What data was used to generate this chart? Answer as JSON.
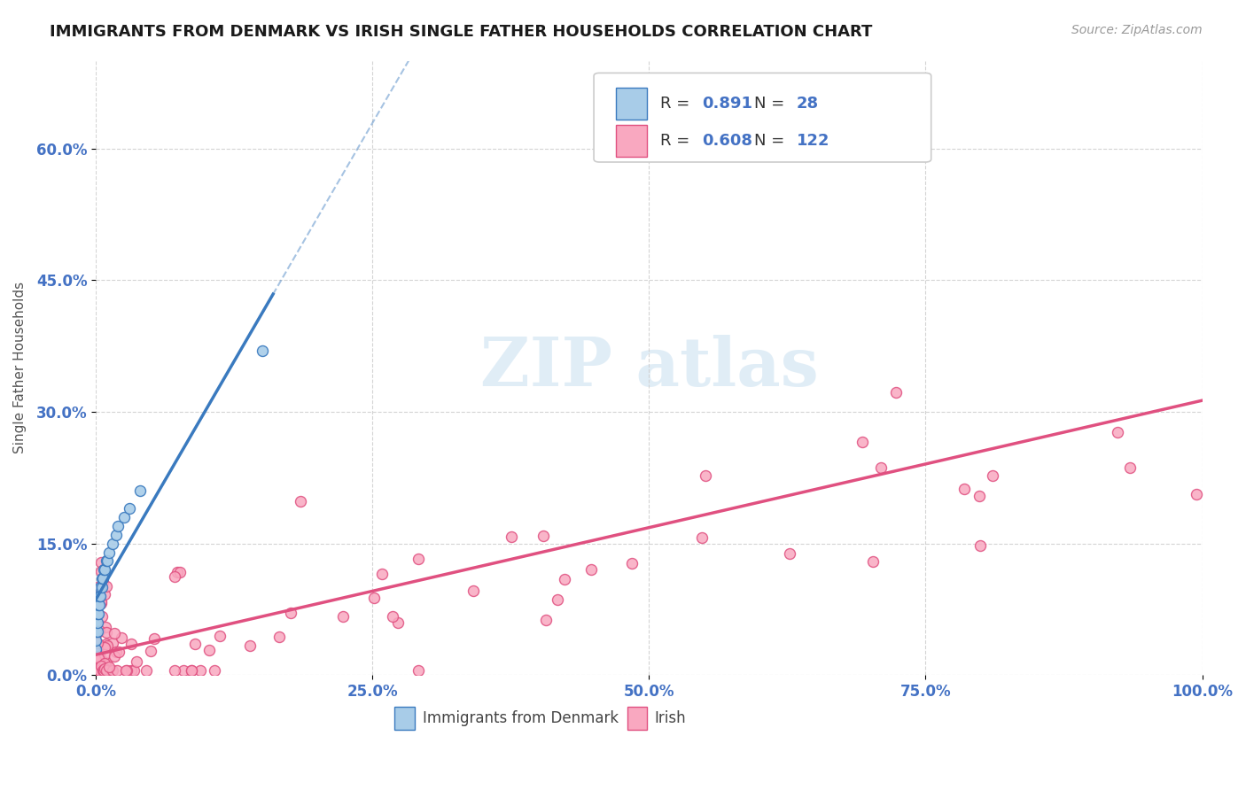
{
  "title": "IMMIGRANTS FROM DENMARK VS IRISH SINGLE FATHER HOUSEHOLDS CORRELATION CHART",
  "source": "Source: ZipAtlas.com",
  "ylabel": "Single Father Households",
  "legend_label1": "Immigrants from Denmark",
  "legend_label2": "Irish",
  "r1": 0.891,
  "n1": 28,
  "r2": 0.608,
  "n2": 122,
  "color_denmark_fill": "#a8cce8",
  "color_denmark_edge": "#3a7abf",
  "color_irish_fill": "#f9a8c0",
  "color_irish_edge": "#e05080",
  "color_denmark_line": "#3a7abf",
  "color_irish_line": "#e05080",
  "xmin": 0.0,
  "xmax": 1.0,
  "ymin": 0.0,
  "ymax": 0.7,
  "ytick_vals": [
    0.0,
    0.15,
    0.3,
    0.45,
    0.6
  ],
  "ytick_labels": [
    "0.0%",
    "15.0%",
    "30.0%",
    "45.0%",
    "60.0%"
  ],
  "xtick_vals": [
    0.0,
    0.25,
    0.5,
    0.75,
    1.0
  ],
  "xtick_labels": [
    "0.0%",
    "25.0%",
    "50.0%",
    "75.0%",
    "100.0%"
  ],
  "tick_color": "#4472c4",
  "grid_color": "#d0d0d0",
  "watermark_color": "#c8dff0"
}
